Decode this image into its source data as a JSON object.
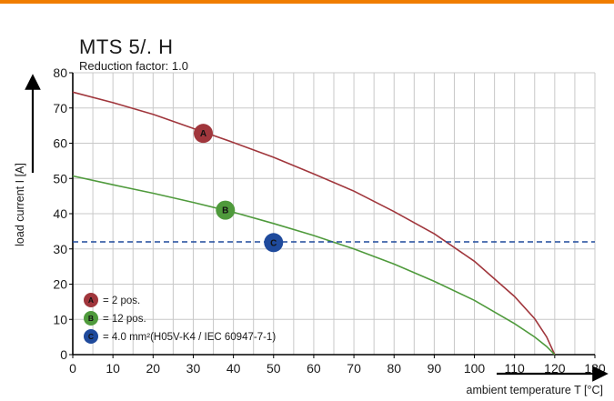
{
  "chart_data": {
    "type": "line",
    "title": "MTS 5/. H",
    "subtitle": "Reduction factor: 1.0",
    "xlabel": "ambient temperature T [°C]",
    "ylabel": "load current I [A]",
    "xlim": [
      0,
      130
    ],
    "ylim": [
      0,
      80
    ],
    "x_ticks": [
      "0",
      "10",
      "20",
      "30",
      "40",
      "50",
      "60",
      "70",
      "80",
      "90",
      "100",
      "110",
      "120",
      "130"
    ],
    "y_ticks": [
      "0",
      "10",
      "20",
      "30",
      "40",
      "50",
      "60",
      "70",
      "80"
    ],
    "grid": true,
    "series": [
      {
        "marker": "A",
        "color": "#a0363c",
        "x": [
          0,
          10,
          20,
          30,
          40,
          50,
          60,
          70,
          80,
          90,
          100,
          110,
          115,
          118,
          120
        ],
        "y": [
          74.5,
          71.5,
          68.2,
          64.2,
          60.2,
          56.0,
          51.3,
          46.4,
          40.6,
          34.3,
          26.5,
          16.5,
          10.2,
          5.0,
          0
        ]
      },
      {
        "marker": "B",
        "color": "#4f9a3c",
        "x": [
          0,
          10,
          20,
          30,
          40,
          50,
          60,
          70,
          80,
          90,
          100,
          110,
          115,
          118,
          120
        ],
        "y": [
          50.7,
          48.2,
          45.8,
          43.2,
          40.4,
          37.2,
          33.8,
          30.0,
          25.7,
          20.8,
          15.4,
          8.8,
          5.0,
          2.3,
          0
        ]
      },
      {
        "marker": "C",
        "color": "#1f4a9c",
        "style": "dashed",
        "x": [
          0,
          130
        ],
        "y": [
          32,
          32
        ]
      }
    ],
    "markers": [
      {
        "label": "A",
        "color": "#a0363c",
        "x": 32.5,
        "y": 62.8
      },
      {
        "label": "B",
        "color": "#4f9a3c",
        "x": 38,
        "y": 41
      },
      {
        "label": "C",
        "color": "#1f4a9c",
        "x": 50,
        "y": 31.8
      }
    ],
    "legend": {
      "placement": "bottom-left",
      "items": [
        {
          "marker": "A",
          "color": "#a0363c",
          "text": "= 2 pos."
        },
        {
          "marker": "B",
          "color": "#4f9a3c",
          "text": "= 12 pos."
        },
        {
          "marker": "C",
          "color": "#1f4a9c",
          "text": "= 4.0 mm²(H05V-K4 / IEC 60947-7-1)"
        }
      ]
    }
  }
}
